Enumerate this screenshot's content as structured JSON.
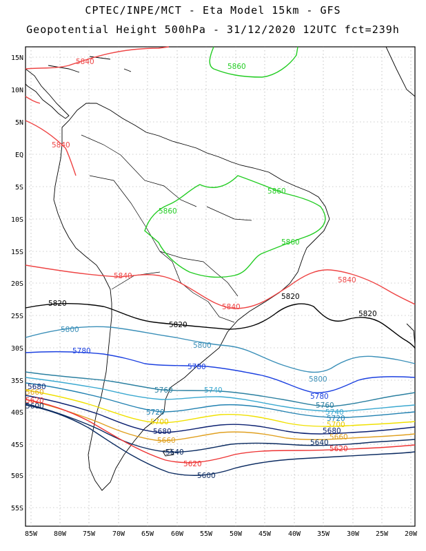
{
  "header": {
    "line1": "CPTEC/INPE/MCT -  Eta Model 15km - GFS",
    "line2": "Geopotential Height 500hPa - 31/12/2020 12UTC fct=239h"
  },
  "axes": {
    "lat_labels": [
      "15N",
      "10N",
      "5N",
      "EQ",
      "5S",
      "10S",
      "15S",
      "20S",
      "25S",
      "30S",
      "35S",
      "40S",
      "45S",
      "50S",
      "55S"
    ],
    "lon_labels": [
      "85W",
      "80W",
      "75W",
      "70W",
      "65W",
      "60W",
      "55W",
      "50W",
      "45W",
      "40W",
      "35W",
      "30W",
      "25W",
      "20W"
    ]
  },
  "colors": {
    "c5860": "#22cc22",
    "c5840": "#ee4444",
    "c5820": "#000000",
    "c5800": "#3a8fb8",
    "c5780": "#1a3fe0",
    "c5760": "#2a7fa0",
    "c5740": "#3aa8d0",
    "c5720": "#2080b0",
    "c5700": "#f0e000",
    "c5680": "#0a1f70",
    "c5660": "#e0a020",
    "c5640": "#0a2a60",
    "c5620": "#ee3333",
    "c5600": "#0a2a60"
  },
  "contour_labels": {
    "l5840_nw": "5840",
    "l5860_n": "5860",
    "l5840_w": "5840",
    "l5860_ne": "5860",
    "l5860_c": "5860",
    "l5860_e": "5860",
    "l5840_c": "5840",
    "l5840_e": "5840",
    "l5840_s": "5840",
    "l5820_w": "5820",
    "l5820_c": "5820",
    "l5820_e": "5820",
    "l5820_e2": "5820",
    "l5800_w": "5800",
    "l5800_c": "5800",
    "l5800_e": "5800",
    "l5780_w": "5780",
    "l5780_c": "5780",
    "l5780_e": "5780",
    "l5760_c": "5760",
    "l5760_e": "5760",
    "l5740_c": "5740",
    "l5740_e": "5740",
    "l5720_c": "5720",
    "l5720_e": "5720",
    "l5700_c": "5700",
    "l5700_e": "5700",
    "l5680_w": "5680",
    "l5680_c": "5680",
    "l5680_e": "5680",
    "l5660_w": "5660",
    "l5660_c": "5660",
    "l5660_e": "5660",
    "l5640_c": "5640",
    "l5640_e": "5640",
    "l5620_w": "5620",
    "l5620_c": "5620",
    "l5620_e": "5620",
    "l5600_w": "5600",
    "l5600_c": "5600"
  }
}
